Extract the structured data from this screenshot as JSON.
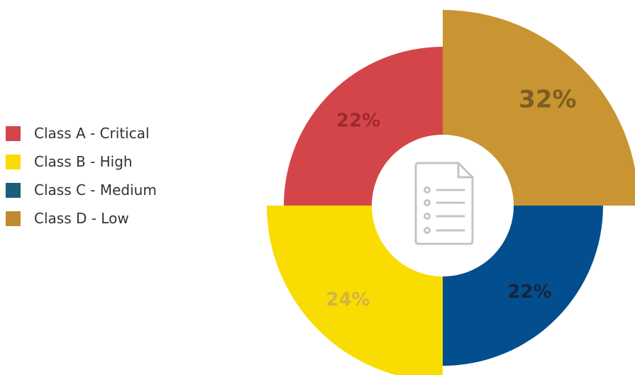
{
  "chart_data": {
    "type": "pie",
    "style": "rose-donut",
    "categories": [
      "Class A - Critical",
      "Class B - High",
      "Class C - Medium",
      "Class D - Low"
    ],
    "values": [
      22,
      24,
      22,
      32
    ],
    "value_labels": [
      "22%",
      "24%",
      "22%",
      "32%"
    ],
    "colors": [
      "#D4454A",
      "#F9DC02",
      "#034E8E",
      "#C89532"
    ],
    "label_colors": [
      "#9B2A2D",
      "#CFB640",
      "#15243B",
      "#7D5D22"
    ],
    "legend_colors": [
      "#D4454A",
      "#F9DC02",
      "#195F7A",
      "#BF8A2F"
    ],
    "legend_position": "left",
    "center_icon": "document-list-icon"
  }
}
